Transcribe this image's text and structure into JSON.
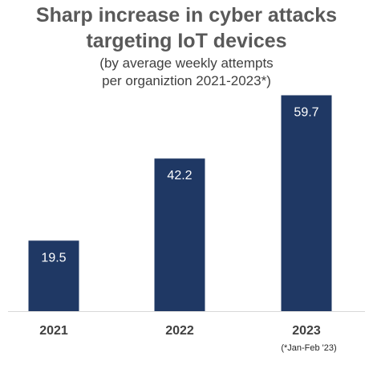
{
  "title_line1": "Sharp increase in cyber attacks",
  "title_line2": "targeting IoT devices",
  "subtitle_line1": "(by average weekly attempts",
  "subtitle_line2": "per organiztion 2021-2023*)",
  "footnote": "(*Jan-Feb '23)",
  "colors": {
    "bar": "#1f3864",
    "bar_label": "#ffffff",
    "axis": "#d9d9d9",
    "tick_label": "#404040"
  },
  "chart_data": {
    "type": "bar",
    "categories": [
      "2021",
      "2022",
      "2023"
    ],
    "values": [
      19.5,
      42.2,
      59.7
    ],
    "data_labels": [
      "19.5",
      "42.2",
      "59.7"
    ],
    "title": "Sharp increase in cyber attacks targeting IoT devices",
    "subtitle": "(by average weekly attempts per organiztion 2021-2023*)",
    "xlabel": "",
    "ylabel": "",
    "ylim": [
      0,
      60.7
    ],
    "grid": false,
    "legend": "none"
  }
}
